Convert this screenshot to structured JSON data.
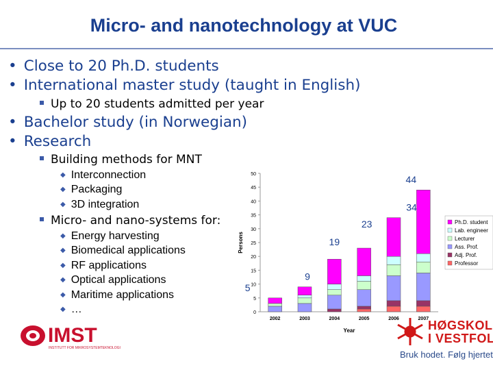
{
  "title": "Micro- and nanotechnology at VUC",
  "bullets": {
    "phd": "Close to 20 Ph.D. students",
    "master": "International master study (taught in English)",
    "master_sub": "Up to 20 students admitted per year",
    "bachelor": "Bachelor study (in Norwegian)",
    "research": "Research",
    "building": "Building methods for MNT",
    "building_items": [
      "Interconnection",
      "Packaging",
      "3D integration"
    ],
    "systems": "Micro- and nano-systems for:",
    "systems_items": [
      "Energy harvesting",
      "Biomedical applications",
      "RF applications",
      "Optical applications",
      "Maritime applications",
      "…"
    ]
  },
  "logos": {
    "imst_name": "IMST",
    "imst_sub": "INSTITUTT FOR MIKROSYSTEMTEKNOLOGI",
    "hive_line1": "HØGSKOLEN",
    "hive_line2": "I VESTFOLD",
    "hive_slogan": "Bruk hodet. Følg hjertet"
  },
  "colors": {
    "title": "#1a3f8f",
    "phd": "#ff00ff",
    "lab": "#ccffff",
    "lecturer": "#ccffcc",
    "ass_prof": "#9999ff",
    "adj_prof": "#993366",
    "professor": "#ff6666"
  },
  "chart_data": {
    "type": "bar",
    "stacked": true,
    "categories": [
      "2002",
      "2003",
      "2004",
      "2005",
      "2006",
      "2007"
    ],
    "xlabel": "Year",
    "ylabel": "Persons",
    "ylim": [
      0,
      50
    ],
    "yticks": [
      0,
      5,
      10,
      15,
      20,
      25,
      30,
      35,
      40,
      45,
      50
    ],
    "totals": [
      5,
      9,
      19,
      23,
      34,
      44
    ],
    "series": [
      {
        "name": "Professor",
        "color": "#ff6666",
        "values": [
          0,
          0,
          0,
          1,
          2,
          2
        ]
      },
      {
        "name": "Adj. Prof.",
        "color": "#993366",
        "values": [
          0,
          0,
          1,
          1,
          2,
          2
        ]
      },
      {
        "name": "Ass. Prof.",
        "color": "#9999ff",
        "values": [
          2,
          3,
          5,
          6,
          9,
          10
        ]
      },
      {
        "name": "Lecturer",
        "color": "#ccffcc",
        "values": [
          1,
          2,
          2,
          3,
          4,
          4
        ]
      },
      {
        "name": "Lab. engineer",
        "color": "#ccffff",
        "values": [
          0,
          1,
          2,
          2,
          3,
          3
        ]
      },
      {
        "name": "Ph.D. student",
        "color": "#ff00ff",
        "values": [
          2,
          3,
          9,
          10,
          14,
          23
        ]
      }
    ],
    "legend_position": "right",
    "grid": false
  }
}
